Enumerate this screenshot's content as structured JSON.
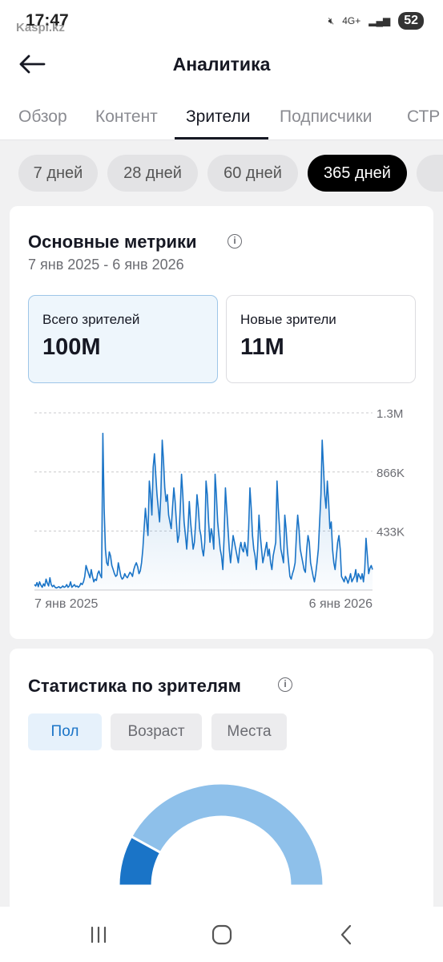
{
  "status_bar": {
    "time": "17:47",
    "watermark": "Kaspi.kz",
    "network": "4G+",
    "battery": "52"
  },
  "header": {
    "title": "Аналитика"
  },
  "tabs": [
    {
      "label": "Обзор",
      "active": false
    },
    {
      "label": "Контент",
      "active": false
    },
    {
      "label": "Зрители",
      "active": true
    },
    {
      "label": "Подписчики",
      "active": false
    },
    {
      "label": "СТР",
      "active": false
    }
  ],
  "periods": [
    {
      "label": "7 дней",
      "active": false
    },
    {
      "label": "28 дней",
      "active": false
    },
    {
      "label": "60 дней",
      "active": false
    },
    {
      "label": "365 дней",
      "active": true
    }
  ],
  "main_metrics": {
    "title": "Основные метрики",
    "date_range": "7 янв 2025 - 6 янв 2026",
    "total_viewers": {
      "label": "Всего зрителей",
      "value": "100M"
    },
    "new_viewers": {
      "label": "Новые зрители",
      "value": "11M"
    }
  },
  "chart_data": {
    "type": "area",
    "x_start_label": "7 янв 2025",
    "x_end_label": "6 янв 2026",
    "y_ticks": [
      {
        "label": "1.3M",
        "value": 1300000
      },
      {
        "label": "866K",
        "value": 866000
      },
      {
        "label": "433K",
        "value": 433000
      }
    ],
    "ylim": [
      0,
      1300000
    ],
    "grid": true,
    "color": "#1a74c7",
    "values": [
      40000,
      30000,
      55000,
      25000,
      60000,
      35000,
      20000,
      45000,
      30000,
      80000,
      50000,
      30000,
      90000,
      40000,
      25000,
      35000,
      20000,
      15000,
      20000,
      25000,
      15000,
      20000,
      30000,
      20000,
      25000,
      40000,
      20000,
      30000,
      60000,
      20000,
      30000,
      40000,
      25000,
      30000,
      20000,
      30000,
      50000,
      40000,
      60000,
      100000,
      180000,
      150000,
      120000,
      90000,
      150000,
      100000,
      60000,
      80000,
      70000,
      120000,
      140000,
      110000,
      90000,
      1150000,
      600000,
      300000,
      200000,
      180000,
      280000,
      250000,
      180000,
      150000,
      120000,
      100000,
      110000,
      200000,
      150000,
      100000,
      80000,
      90000,
      120000,
      100000,
      90000,
      110000,
      130000,
      120000,
      100000,
      150000,
      180000,
      200000,
      170000,
      120000,
      140000,
      200000,
      300000,
      450000,
      600000,
      500000,
      400000,
      800000,
      700000,
      550000,
      900000,
      1000000,
      850000,
      700000,
      600000,
      500000,
      700000,
      1100000,
      950000,
      750000,
      650000,
      700000,
      550000,
      500000,
      450000,
      600000,
      750000,
      650000,
      500000,
      350000,
      400000,
      600000,
      850000,
      700000,
      500000,
      400000,
      300000,
      450000,
      650000,
      500000,
      400000,
      300000,
      350000,
      500000,
      700000,
      600000,
      450000,
      400000,
      300000,
      250000,
      350000,
      800000,
      700000,
      500000,
      350000,
      450000,
      400000,
      300000,
      850000,
      700000,
      500000,
      400000,
      300000,
      250000,
      150000,
      400000,
      750000,
      600000,
      450000,
      300000,
      200000,
      300000,
      400000,
      350000,
      300000,
      250000,
      200000,
      300000,
      350000,
      300000,
      280000,
      350000,
      300000,
      250000,
      450000,
      750000,
      600000,
      400000,
      300000,
      250000,
      150000,
      300000,
      550000,
      400000,
      300000,
      200000,
      250000,
      300000,
      350000,
      250000,
      300000,
      200000,
      150000,
      250000,
      300000,
      350000,
      800000,
      600000,
      450000,
      300000,
      250000,
      200000,
      550000,
      450000,
      300000,
      200000,
      100000,
      80000,
      120000,
      150000,
      200000,
      400000,
      550000,
      450000,
      300000,
      250000,
      200000,
      150000,
      130000,
      300000,
      400000,
      350000,
      200000,
      150000,
      100000,
      60000,
      120000,
      200000,
      300000,
      500000,
      700000,
      1100000,
      900000,
      700000,
      600000,
      800000,
      650000,
      450000,
      500000,
      300000,
      200000,
      150000,
      250000,
      350000,
      400000,
      300000,
      100000,
      80000,
      60000,
      100000,
      80000,
      50000,
      80000,
      120000,
      60000,
      80000,
      100000,
      150000,
      60000,
      120000,
      100000,
      80000,
      120000,
      60000,
      150000,
      380000,
      250000,
      120000,
      160000,
      180000,
      150000
    ]
  },
  "audience_stats": {
    "title": "Статистика по зрителям",
    "segments": [
      {
        "label": "Пол",
        "active": true
      },
      {
        "label": "Возраст",
        "active": false
      },
      {
        "label": "Места",
        "active": false
      }
    ],
    "gender_share": [
      {
        "value": 0.16,
        "color": "#1a74c7"
      },
      {
        "value": 0.84,
        "color": "#8ec0ea"
      }
    ]
  }
}
